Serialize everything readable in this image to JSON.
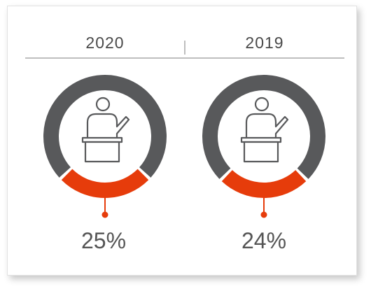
{
  "chart_data": [
    {
      "type": "pie",
      "year_label": "2020",
      "value_label": "25%",
      "value": 25,
      "colors": {
        "highlight": "#e63c0b",
        "rest": "#58595b"
      },
      "icon": "speaker-at-podium-icon"
    },
    {
      "type": "pie",
      "year_label": "2019",
      "value_label": "24%",
      "value": 24,
      "colors": {
        "highlight": "#e63c0b",
        "rest": "#58595b"
      },
      "icon": "speaker-at-podium-icon"
    }
  ],
  "colors": {
    "divider": "#9e9e9e",
    "text": "#4a4a4a"
  }
}
